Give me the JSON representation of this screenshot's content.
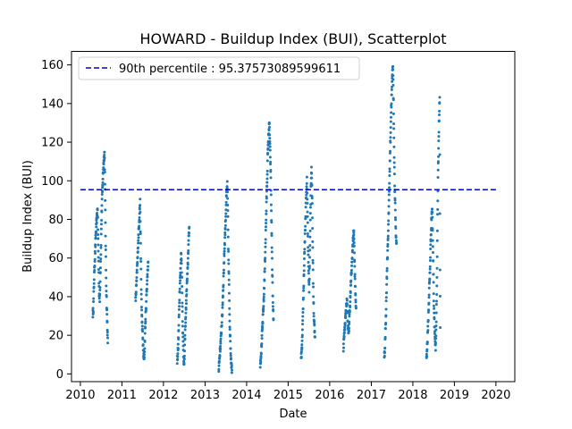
{
  "chart_data": {
    "type": "scatter",
    "title": "HOWARD - Buildup Index (BUI), Scatterplot",
    "xlabel": "Date",
    "ylabel": "Buildup Index (BUI)",
    "x_ticks": [
      "2010",
      "2011",
      "2012",
      "2013",
      "2014",
      "2015",
      "2016",
      "2017",
      "2018",
      "2019",
      "2020"
    ],
    "y_ticks": [
      0,
      20,
      40,
      60,
      80,
      100,
      120,
      140,
      160
    ],
    "xlim": [
      "2009-10-15",
      "2020-06-15"
    ],
    "ylim": [
      -4,
      167
    ],
    "grid": false,
    "legend_position": "top-left",
    "series_color": "#1f77b4",
    "reference_line": {
      "label": "90th percentile : 95.37573089599611",
      "value": 95.37573089599611,
      "color": "#0000cd",
      "style": "dashed"
    },
    "seasons": [
      {
        "year": 2010,
        "points": [
          [
            "2010-04-20",
            31
          ],
          [
            "2010-04-25",
            34
          ],
          [
            "2010-05-01",
            48
          ],
          [
            "2010-05-05",
            55
          ],
          [
            "2010-05-10",
            62
          ],
          [
            "2010-05-15",
            70
          ],
          [
            "2010-05-20",
            76
          ],
          [
            "2010-05-25",
            80
          ],
          [
            "2010-06-01",
            86
          ],
          [
            "2010-06-05",
            72
          ],
          [
            "2010-06-10",
            58
          ],
          [
            "2010-06-15",
            42
          ],
          [
            "2010-06-20",
            38
          ],
          [
            "2010-06-25",
            52
          ],
          [
            "2010-07-01",
            65
          ],
          [
            "2010-07-05",
            78
          ],
          [
            "2010-07-10",
            90
          ],
          [
            "2010-07-15",
            97
          ],
          [
            "2010-07-20",
            104
          ],
          [
            "2010-07-25",
            110
          ],
          [
            "2010-08-01",
            115
          ],
          [
            "2010-08-05",
            100
          ],
          [
            "2010-08-10",
            72
          ],
          [
            "2010-08-15",
            50
          ],
          [
            "2010-08-20",
            36
          ],
          [
            "2010-08-25",
            26
          ],
          [
            "2010-08-30",
            16
          ]
        ]
      },
      {
        "year": 2011,
        "points": [
          [
            "2011-05-01",
            38
          ],
          [
            "2011-05-05",
            42
          ],
          [
            "2011-05-10",
            48
          ],
          [
            "2011-05-15",
            55
          ],
          [
            "2011-05-20",
            62
          ],
          [
            "2011-05-25",
            70
          ],
          [
            "2011-06-01",
            78
          ],
          [
            "2011-06-05",
            84
          ],
          [
            "2011-06-10",
            89
          ],
          [
            "2011-06-15",
            66
          ],
          [
            "2011-06-20",
            44
          ],
          [
            "2011-06-25",
            30
          ],
          [
            "2011-07-01",
            22
          ],
          [
            "2011-07-05",
            16
          ],
          [
            "2011-07-10",
            10
          ],
          [
            "2011-07-15",
            7
          ],
          [
            "2011-07-20",
            14
          ],
          [
            "2011-07-25",
            25
          ],
          [
            "2011-08-01",
            34
          ],
          [
            "2011-08-05",
            41
          ],
          [
            "2011-08-10",
            47
          ],
          [
            "2011-08-15",
            53
          ],
          [
            "2011-08-20",
            58
          ]
        ]
      },
      {
        "year": 2012,
        "points": [
          [
            "2012-05-01",
            7
          ],
          [
            "2012-05-05",
            10
          ],
          [
            "2012-05-10",
            15
          ],
          [
            "2012-05-15",
            25
          ],
          [
            "2012-05-20",
            38
          ],
          [
            "2012-05-25",
            48
          ],
          [
            "2012-06-01",
            56
          ],
          [
            "2012-06-05",
            63
          ],
          [
            "2012-06-10",
            52
          ],
          [
            "2012-06-15",
            35
          ],
          [
            "2012-06-20",
            20
          ],
          [
            "2012-06-25",
            10
          ],
          [
            "2012-07-01",
            4
          ],
          [
            "2012-07-05",
            12
          ],
          [
            "2012-07-10",
            22
          ],
          [
            "2012-07-15",
            30
          ],
          [
            "2012-07-20",
            38
          ],
          [
            "2012-07-25",
            46
          ],
          [
            "2012-08-01",
            54
          ],
          [
            "2012-08-05",
            62
          ],
          [
            "2012-08-10",
            70
          ],
          [
            "2012-08-15",
            76
          ]
        ]
      },
      {
        "year": 2013,
        "points": [
          [
            "2013-05-01",
            3
          ],
          [
            "2013-05-05",
            6
          ],
          [
            "2013-05-10",
            10
          ],
          [
            "2013-05-15",
            14
          ],
          [
            "2013-05-20",
            18
          ],
          [
            "2013-05-25",
            24
          ],
          [
            "2013-06-01",
            30
          ],
          [
            "2013-06-05",
            38
          ],
          [
            "2013-06-10",
            46
          ],
          [
            "2013-06-15",
            55
          ],
          [
            "2013-06-20",
            64
          ],
          [
            "2013-06-25",
            72
          ],
          [
            "2013-07-01",
            80
          ],
          [
            "2013-07-05",
            88
          ],
          [
            "2013-07-10",
            94
          ],
          [
            "2013-07-15",
            98
          ],
          [
            "2013-07-20",
            84
          ],
          [
            "2013-07-25",
            62
          ],
          [
            "2013-08-01",
            42
          ],
          [
            "2013-08-05",
            28
          ],
          [
            "2013-08-10",
            18
          ],
          [
            "2013-08-15",
            10
          ],
          [
            "2013-08-20",
            5
          ],
          [
            "2013-08-25",
            2
          ]
        ]
      },
      {
        "year": 2014,
        "points": [
          [
            "2014-05-01",
            5
          ],
          [
            "2014-05-05",
            8
          ],
          [
            "2014-05-10",
            12
          ],
          [
            "2014-05-15",
            18
          ],
          [
            "2014-05-20",
            24
          ],
          [
            "2014-05-25",
            30
          ],
          [
            "2014-06-01",
            38
          ],
          [
            "2014-06-05",
            46
          ],
          [
            "2014-06-10",
            55
          ],
          [
            "2014-06-15",
            66
          ],
          [
            "2014-06-20",
            78
          ],
          [
            "2014-06-25",
            90
          ],
          [
            "2014-07-01",
            102
          ],
          [
            "2014-07-05",
            112
          ],
          [
            "2014-07-10",
            120
          ],
          [
            "2014-07-15",
            126
          ],
          [
            "2014-07-20",
            129
          ],
          [
            "2014-07-25",
            118
          ],
          [
            "2014-08-01",
            104
          ],
          [
            "2014-08-05",
            88
          ],
          [
            "2014-08-10",
            70
          ],
          [
            "2014-08-15",
            52
          ],
          [
            "2014-08-20",
            36
          ],
          [
            "2014-08-25",
            28
          ]
        ]
      },
      {
        "year": 2015,
        "points": [
          [
            "2015-04-25",
            8
          ],
          [
            "2015-05-01",
            12
          ],
          [
            "2015-05-05",
            18
          ],
          [
            "2015-05-10",
            28
          ],
          [
            "2015-05-15",
            40
          ],
          [
            "2015-05-20",
            52
          ],
          [
            "2015-05-25",
            64
          ],
          [
            "2015-06-01",
            76
          ],
          [
            "2015-06-05",
            86
          ],
          [
            "2015-06-10",
            94
          ],
          [
            "2015-06-15",
            100
          ],
          [
            "2015-06-20",
            84
          ],
          [
            "2015-06-25",
            66
          ],
          [
            "2015-07-01",
            52
          ],
          [
            "2015-07-05",
            44
          ],
          [
            "2015-07-10",
            60
          ],
          [
            "2015-07-15",
            80
          ],
          [
            "2015-07-20",
            96
          ],
          [
            "2015-07-25",
            107
          ],
          [
            "2015-08-01",
            88
          ],
          [
            "2015-08-05",
            64
          ],
          [
            "2015-08-10",
            44
          ],
          [
            "2015-08-15",
            30
          ],
          [
            "2015-08-20",
            24
          ],
          [
            "2015-08-25",
            19
          ]
        ]
      },
      {
        "year": 2016,
        "points": [
          [
            "2016-05-01",
            13
          ],
          [
            "2016-05-05",
            18
          ],
          [
            "2016-05-10",
            22
          ],
          [
            "2016-05-15",
            26
          ],
          [
            "2016-05-20",
            30
          ],
          [
            "2016-05-25",
            34
          ],
          [
            "2016-06-01",
            38
          ],
          [
            "2016-06-05",
            32
          ],
          [
            "2016-06-10",
            24
          ],
          [
            "2016-06-15",
            20
          ],
          [
            "2016-06-20",
            26
          ],
          [
            "2016-06-25",
            33
          ],
          [
            "2016-07-01",
            40
          ],
          [
            "2016-07-05",
            46
          ],
          [
            "2016-07-10",
            52
          ],
          [
            "2016-07-15",
            58
          ],
          [
            "2016-07-20",
            64
          ],
          [
            "2016-07-25",
            70
          ],
          [
            "2016-08-01",
            74
          ],
          [
            "2016-08-05",
            62
          ],
          [
            "2016-08-10",
            50
          ],
          [
            "2016-08-15",
            40
          ],
          [
            "2016-08-20",
            34
          ]
        ]
      },
      {
        "year": 2017,
        "points": [
          [
            "2017-04-25",
            8
          ],
          [
            "2017-05-01",
            14
          ],
          [
            "2017-05-05",
            22
          ],
          [
            "2017-05-10",
            32
          ],
          [
            "2017-05-15",
            44
          ],
          [
            "2017-05-20",
            56
          ],
          [
            "2017-05-25",
            66
          ],
          [
            "2017-06-01",
            78
          ],
          [
            "2017-06-05",
            90
          ],
          [
            "2017-06-10",
            102
          ],
          [
            "2017-06-15",
            114
          ],
          [
            "2017-06-20",
            126
          ],
          [
            "2017-06-25",
            138
          ],
          [
            "2017-07-01",
            148
          ],
          [
            "2017-07-05",
            156
          ],
          [
            "2017-07-10",
            160
          ],
          [
            "2017-07-15",
            140
          ],
          [
            "2017-07-20",
            118
          ],
          [
            "2017-07-25",
            98
          ],
          [
            "2017-08-01",
            82
          ],
          [
            "2017-08-05",
            72
          ],
          [
            "2017-08-10",
            68
          ]
        ]
      },
      {
        "year": 2018,
        "points": [
          [
            "2018-05-01",
            8
          ],
          [
            "2018-05-05",
            12
          ],
          [
            "2018-05-10",
            18
          ],
          [
            "2018-05-15",
            26
          ],
          [
            "2018-05-20",
            34
          ],
          [
            "2018-05-25",
            44
          ],
          [
            "2018-06-01",
            54
          ],
          [
            "2018-06-05",
            64
          ],
          [
            "2018-06-10",
            74
          ],
          [
            "2018-06-15",
            82
          ],
          [
            "2018-06-20",
            86
          ],
          [
            "2018-06-25",
            70
          ],
          [
            "2018-07-01",
            50
          ],
          [
            "2018-07-05",
            36
          ],
          [
            "2018-07-10",
            26
          ],
          [
            "2018-07-15",
            18
          ],
          [
            "2018-07-20",
            12
          ],
          [
            "2018-07-25",
            24
          ],
          [
            "2018-08-01",
            48
          ],
          [
            "2018-08-05",
            76
          ],
          [
            "2018-08-10",
            100
          ],
          [
            "2018-08-15",
            118
          ],
          [
            "2018-08-20",
            132
          ],
          [
            "2018-08-25",
            143
          ],
          [
            "2018-08-28",
            53
          ],
          [
            "2018-08-30",
            24
          ]
        ]
      }
    ]
  }
}
